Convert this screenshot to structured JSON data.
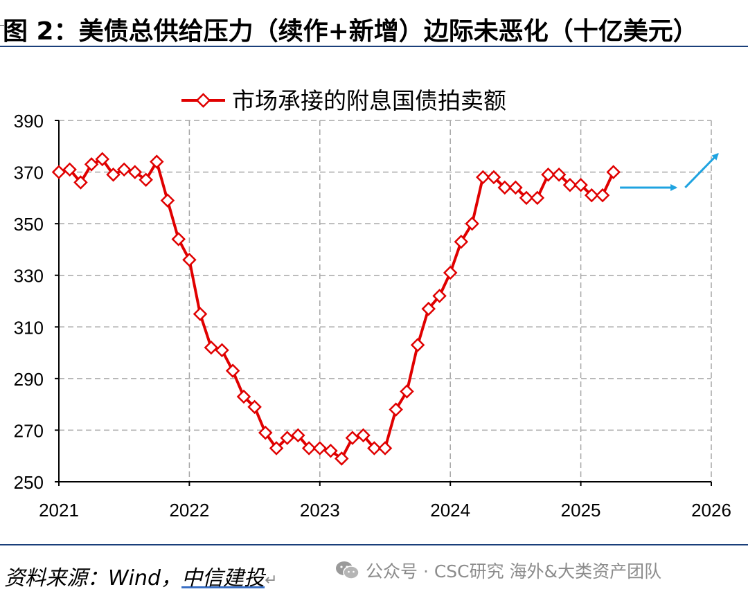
{
  "header": {
    "figure_title": "图 2：美债总供给压力（续作+新增）边际未恶化（十亿美元）"
  },
  "footer": {
    "source_label": "资料来源：",
    "source_name": "Wind，",
    "source_org": "中信建投",
    "return_mark": "↵",
    "watermark": "公众号 · CSC研究 海外&大类资产团队"
  },
  "colors": {
    "series": "#e00000",
    "arrow": "#1fa3e0",
    "grid": "#a6a6a6",
    "rule": "#1a3f7a"
  },
  "icons": [
    "wechat-icon",
    "arrow-right-icon",
    "arrow-up-right-icon",
    "diamond-marker-icon"
  ],
  "chart_data": {
    "type": "line",
    "title": "",
    "xlabel": "",
    "ylabel": "",
    "legend": "top-center",
    "grid": true,
    "xlim": [
      2021,
      2026
    ],
    "ylim": [
      250,
      390
    ],
    "yticks": [
      250,
      270,
      290,
      310,
      330,
      350,
      370,
      390
    ],
    "xticks": [
      2021,
      2022,
      2023,
      2024,
      2025,
      2026
    ],
    "series": [
      {
        "name": "市场承接的附息国债拍卖额",
        "marker": "diamond",
        "x": [
          2021.0,
          2021.083,
          2021.167,
          2021.25,
          2021.333,
          2021.417,
          2021.5,
          2021.583,
          2021.667,
          2021.75,
          2021.833,
          2021.917,
          2022.0,
          2022.083,
          2022.167,
          2022.25,
          2022.333,
          2022.417,
          2022.5,
          2022.583,
          2022.667,
          2022.75,
          2022.833,
          2022.917,
          2023.0,
          2023.083,
          2023.167,
          2023.25,
          2023.333,
          2023.417,
          2023.5,
          2023.583,
          2023.667,
          2023.75,
          2023.833,
          2023.917,
          2024.0,
          2024.083,
          2024.167,
          2024.25,
          2024.333,
          2024.417,
          2024.5,
          2024.583,
          2024.667,
          2024.75,
          2024.833,
          2024.917,
          2025.0,
          2025.083,
          2025.167,
          2025.25
        ],
        "values": [
          370,
          371,
          366,
          373,
          375,
          369,
          371,
          370,
          367,
          374,
          359,
          344,
          336,
          315,
          302,
          301,
          293,
          283,
          279,
          269,
          263,
          267,
          268,
          263,
          263,
          262,
          259,
          267,
          268,
          263,
          263,
          278,
          285,
          303,
          317,
          322,
          331,
          343,
          350,
          368,
          368,
          364,
          364,
          360,
          360,
          369,
          369,
          365,
          365,
          361,
          361,
          370
        ]
      }
    ],
    "annotations": [
      {
        "type": "arrow",
        "direction": "right",
        "from": [
          2025.3,
          364
        ],
        "to": [
          2025.73,
          364
        ]
      },
      {
        "type": "arrow",
        "direction": "up-right",
        "from": [
          2025.8,
          364
        ],
        "to": [
          2026.05,
          377
        ]
      }
    ]
  }
}
